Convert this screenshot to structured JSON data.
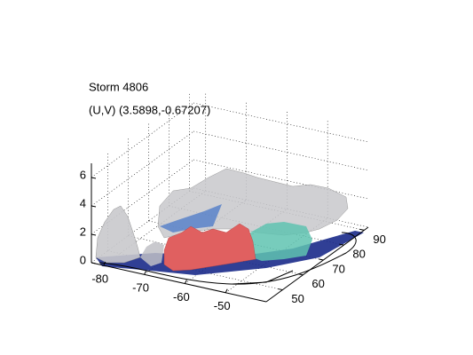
{
  "chart_data": {
    "type": "surface3d",
    "title": "Storm 4806",
    "subtitle": "(U,V) (3.5898,-0.67207)",
    "xlim": [
      -83,
      -40
    ],
    "xticks": [
      -80,
      -70,
      -60,
      -50
    ],
    "ylim": [
      42,
      92
    ],
    "yticks": [
      50,
      60,
      70,
      80,
      90
    ],
    "zlim": [
      0,
      7
    ],
    "zticks": [
      0,
      2,
      4,
      6
    ],
    "grid": true
  }
}
